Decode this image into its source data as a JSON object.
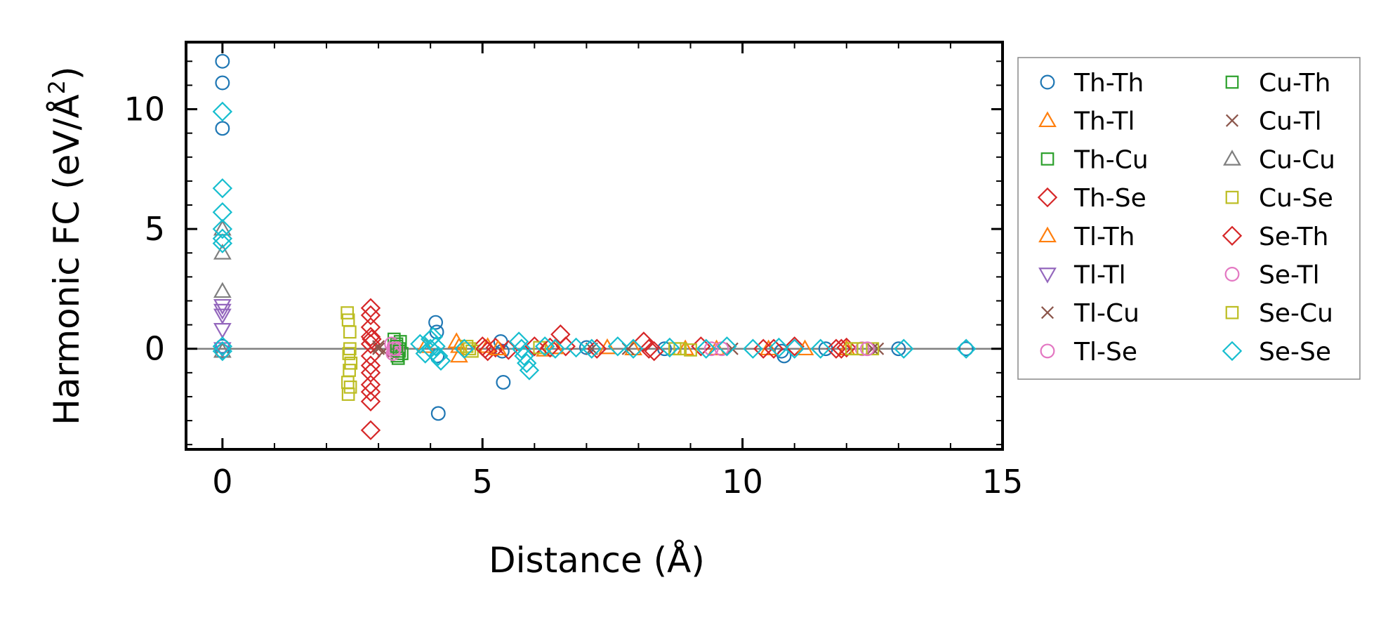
{
  "chart_data": {
    "type": "scatter",
    "title": "",
    "xlabel": "Distance (Å)",
    "ylabel_main": "Harmonic FC (eV/Å",
    "ylabel_sup": "2",
    "ylabel_end": ")",
    "xlim": [
      -0.7,
      15
    ],
    "ylim": [
      -4.2,
      12.8
    ],
    "xticks": [
      0,
      5,
      10,
      15
    ],
    "xtick_labels": [
      "0",
      "5",
      "10",
      "15"
    ],
    "yticks": [
      0,
      5,
      10
    ],
    "ytick_labels": [
      "0",
      "5",
      "10"
    ],
    "grid": false,
    "zero_line": true,
    "legend_position": "outside-right",
    "series": [
      {
        "name": "Th-Th",
        "marker": "circle",
        "color": "#1f77b4",
        "x": [
          0,
          0,
          0,
          0,
          0,
          4.1,
          4.12,
          4.13,
          4.15,
          5.35,
          5.38,
          5.4,
          7.0,
          8.5,
          10.75,
          10.8,
          11.6,
          13.0,
          14.3
        ],
        "y": [
          12.0,
          11.1,
          9.2,
          0.1,
          -0.1,
          1.1,
          0.7,
          -0.3,
          -2.7,
          0.3,
          -0.1,
          -1.4,
          0.05,
          0.0,
          -0.1,
          -0.3,
          0.0,
          0.0,
          0.0
        ]
      },
      {
        "name": "Th-Tl",
        "marker": "triangle-up",
        "color": "#ff7f0e",
        "x": [
          3.9,
          4.5,
          4.55,
          5.1,
          6.2,
          7.4,
          8.9,
          10.5,
          12.0
        ],
        "y": [
          0.1,
          0.3,
          -0.3,
          0.1,
          -0.05,
          0.05,
          0.0,
          0.0,
          0.0
        ]
      },
      {
        "name": "Th-Cu",
        "marker": "square",
        "color": "#2ca02c",
        "x": [
          3.3,
          3.35,
          3.4,
          3.45,
          3.38,
          3.42,
          3.36
        ],
        "y": [
          0.4,
          0.2,
          0.0,
          -0.2,
          -0.4,
          0.3,
          -0.3
        ]
      },
      {
        "name": "Th-Se",
        "marker": "diamond",
        "color": "#d62728",
        "x": [
          2.85,
          2.85,
          2.85,
          2.85,
          2.85,
          2.85,
          2.85,
          2.85,
          2.85,
          2.85,
          2.85,
          2.85,
          5.0,
          5.1,
          5.25,
          5.5,
          6.0,
          6.5,
          6.6,
          7.2,
          8.1,
          8.3,
          9.2,
          10.4,
          11.0,
          11.8,
          12.0
        ],
        "y": [
          1.7,
          1.4,
          0.9,
          0.5,
          0.2,
          -0.3,
          -0.7,
          -1.0,
          -1.5,
          -1.8,
          -2.2,
          -3.4,
          0.1,
          -0.1,
          0.05,
          -0.05,
          0.1,
          0.6,
          0.1,
          0.0,
          0.3,
          -0.1,
          0.1,
          0.0,
          0.1,
          0.0,
          0.05
        ]
      },
      {
        "name": "Tl-Th",
        "marker": "triangle-up",
        "color": "#ff7f0e",
        "x": [
          4.55,
          5.3,
          6.4,
          7.9,
          9.5,
          11.2
        ],
        "y": [
          0.1,
          0.0,
          0.05,
          0.0,
          0.0,
          0.0
        ]
      },
      {
        "name": "Tl-Tl",
        "marker": "triangle-down",
        "color": "#9467bd",
        "x": [
          0,
          0,
          0,
          0,
          0
        ],
        "y": [
          1.8,
          1.6,
          1.4,
          0.8,
          0.0
        ]
      },
      {
        "name": "Tl-Cu",
        "marker": "x",
        "color": "#8c564b",
        "x": [
          3.0,
          3.1,
          7.1,
          9.8,
          12.5
        ],
        "y": [
          0.1,
          -0.1,
          0.0,
          0.0,
          0.0
        ]
      },
      {
        "name": "Tl-Se",
        "marker": "circle",
        "color": "#e377c2",
        "x": [
          3.25,
          3.3,
          3.35,
          3.3,
          3.28,
          9.4,
          12.3
        ],
        "y": [
          0.2,
          0.1,
          0.0,
          -0.1,
          -0.2,
          0.0,
          0.0
        ]
      },
      {
        "name": "Cu-Th",
        "marker": "square",
        "color": "#2ca02c",
        "x": [
          3.35,
          3.4
        ],
        "y": [
          0.1,
          -0.1
        ]
      },
      {
        "name": "Cu-Tl",
        "marker": "x",
        "color": "#8c564b",
        "x": [
          3.0,
          7.8,
          12.6
        ],
        "y": [
          0.0,
          0.0,
          0.0
        ]
      },
      {
        "name": "Cu-Cu",
        "marker": "triangle-up",
        "color": "#7f7f7f",
        "x": [
          0,
          0,
          0,
          0
        ],
        "y": [
          5.0,
          4.0,
          2.4,
          -0.1
        ]
      },
      {
        "name": "Cu-Se",
        "marker": "square",
        "color": "#bcbd22",
        "x": [
          2.4,
          2.42,
          2.45,
          2.43,
          2.47,
          2.44,
          2.41,
          2.46,
          2.42,
          4.7,
          4.8,
          6.1,
          8.8,
          9.0,
          12.2,
          12.5
        ],
        "y": [
          1.5,
          1.2,
          0.7,
          -0.2,
          -0.6,
          -0.9,
          -1.4,
          -1.6,
          -1.9,
          0.1,
          -0.1,
          0.05,
          0.0,
          -0.05,
          0.0,
          0.0
        ]
      },
      {
        "name": "Se-Th",
        "marker": "diamond",
        "color": "#d62728",
        "x": [
          2.87,
          5.05,
          6.3,
          8.2,
          10.6,
          11.9
        ],
        "y": [
          0.4,
          0.0,
          0.05,
          0.0,
          0.0,
          0.0
        ]
      },
      {
        "name": "Se-Tl",
        "marker": "circle",
        "color": "#e377c2",
        "x": [
          3.3,
          9.6,
          12.4
        ],
        "y": [
          0.0,
          0.0,
          0.0
        ]
      },
      {
        "name": "Se-Cu",
        "marker": "square",
        "color": "#bcbd22",
        "x": [
          2.45,
          4.75,
          8.7,
          12.1
        ],
        "y": [
          0.0,
          0.0,
          0.0,
          0.0
        ]
      },
      {
        "name": "Se-Se",
        "marker": "diamond",
        "color": "#17becf",
        "x": [
          0,
          0,
          0,
          0,
          0,
          0,
          0,
          0,
          3.8,
          3.9,
          4.0,
          4.1,
          4.15,
          4.2,
          4.0,
          4.05,
          4.65,
          5.7,
          5.75,
          5.8,
          5.85,
          5.9,
          6.2,
          6.4,
          6.8,
          7.1,
          7.6,
          7.9,
          8.6,
          9.3,
          9.7,
          10.2,
          10.7,
          11.0,
          11.5,
          13.1,
          14.3
        ],
        "y": [
          9.9,
          6.7,
          5.7,
          5.0,
          4.6,
          4.4,
          0.1,
          -0.1,
          0.2,
          -0.2,
          0.4,
          0.1,
          -0.3,
          -0.5,
          0.0,
          0.5,
          0.0,
          0.3,
          0.0,
          -0.3,
          -0.6,
          -0.9,
          0.1,
          0.0,
          0.05,
          0.0,
          0.1,
          0.0,
          0.05,
          0.0,
          0.1,
          0.0,
          0.05,
          0.0,
          0.0,
          0.0,
          0.0
        ]
      }
    ]
  }
}
